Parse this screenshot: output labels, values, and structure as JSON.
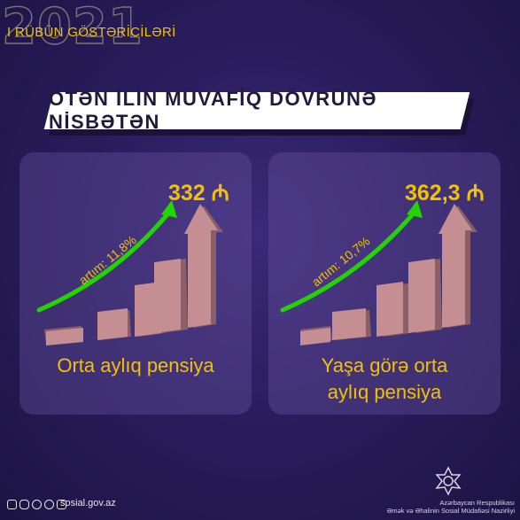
{
  "header": {
    "year": "2021",
    "quarter": "I RÜBÜN GÖSTƏRİCİLƏRİ"
  },
  "banner": {
    "title": "ÖTƏN İLİN MÜVAFİQ DÖVRÜNƏ NİSBƏTƏN"
  },
  "cards": [
    {
      "value": "332",
      "currency_symbol": "₼",
      "growth": "artım: 11,8%",
      "label_line1": "Orta aylıq pensiya",
      "label_line2": ""
    },
    {
      "value": "362,3",
      "currency_symbol": "₼",
      "growth": "artım: 10,7%",
      "label_line1": "Yaşa görə orta",
      "label_line2": "aylıq pensiya"
    }
  ],
  "footer": {
    "website": "sosial.gov.az",
    "ministry_line1": "Azərbaycan Respublikası",
    "ministry_line2": "Əmək və Əhalinin Sosial Müdafiəsi Nazirliyi"
  },
  "colors": {
    "accent_yellow": "#f2c200",
    "arrow_green": "#22d400",
    "bar": "#c48e92",
    "bar_side": "#8a5f66"
  }
}
